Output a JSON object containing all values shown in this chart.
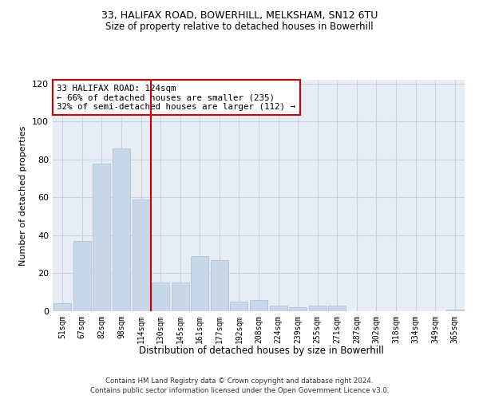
{
  "title1": "33, HALIFAX ROAD, BOWERHILL, MELKSHAM, SN12 6TU",
  "title2": "Size of property relative to detached houses in Bowerhill",
  "xlabel": "Distribution of detached houses by size in Bowerhill",
  "ylabel": "Number of detached properties",
  "categories": [
    "51sqm",
    "67sqm",
    "82sqm",
    "98sqm",
    "114sqm",
    "130sqm",
    "145sqm",
    "161sqm",
    "177sqm",
    "192sqm",
    "208sqm",
    "224sqm",
    "239sqm",
    "255sqm",
    "271sqm",
    "287sqm",
    "302sqm",
    "318sqm",
    "334sqm",
    "349sqm",
    "365sqm"
  ],
  "values": [
    4,
    37,
    78,
    86,
    59,
    15,
    15,
    29,
    27,
    5,
    6,
    3,
    2,
    3,
    3,
    0,
    0,
    0,
    0,
    0,
    1
  ],
  "bar_color": "#c8d8e8",
  "bar_edge_color": "#a8bece",
  "grid_color": "#c8d4e4",
  "background_color": "#e8edf5",
  "vline_color": "#cc0000",
  "vline_pos": 4.5,
  "annotation_text": "33 HALIFAX ROAD: 124sqm\n← 66% of detached houses are smaller (235)\n32% of semi-detached houses are larger (112) →",
  "annotation_box_color": "#ffffff",
  "annotation_box_edge": "#cc0000",
  "ylim": [
    0,
    122
  ],
  "yticks": [
    0,
    20,
    40,
    60,
    80,
    100,
    120
  ],
  "footer1": "Contains HM Land Registry data © Crown copyright and database right 2024.",
  "footer2": "Contains public sector information licensed under the Open Government Licence v3.0."
}
